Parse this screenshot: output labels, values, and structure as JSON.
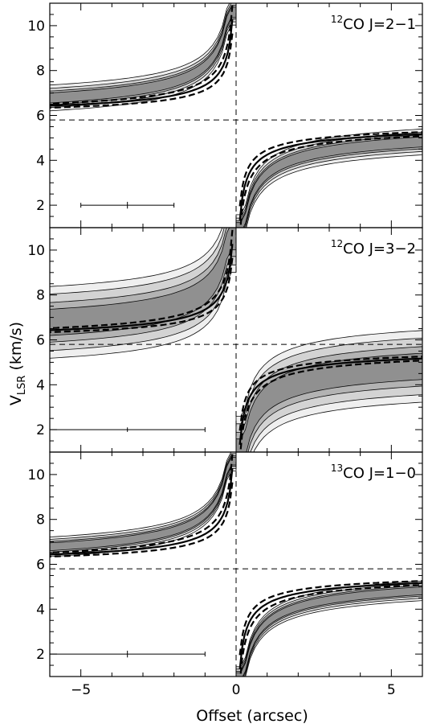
{
  "chart_data": {
    "type": "contour",
    "xlabel": "Offset (arcsec)",
    "ylabel": "V",
    "ylabel_sub": "LSR",
    "ylabel_unit": " (km/s)",
    "xlim": [
      -6,
      6
    ],
    "ylim": [
      1,
      11
    ],
    "x_ticks": [
      -5,
      0,
      5
    ],
    "x_tick_labels": [
      "−5",
      "0",
      "5"
    ],
    "y_ticks": [
      2,
      4,
      6,
      8,
      10
    ],
    "y_tick_labels": [
      "2",
      "4",
      "6",
      "8",
      "10"
    ],
    "systemic_velocity": 5.8,
    "center_offset": 0,
    "fill_colors": [
      "#efefef",
      "#d2d2d2",
      "#b2b2b2",
      "#8f8f8f"
    ],
    "panels": [
      {
        "label_sup": "12",
        "label_text": "CO J=2−1",
        "spread": 0.45,
        "extent": [
          0.62,
          0.4,
          0.22,
          0.1
        ],
        "error_bar": {
          "x": -3.5,
          "y": 2.0,
          "half_width": 1.5,
          "half_height": 0.15
        }
      },
      {
        "label_sup": "12",
        "label_text": "CO J=3−2",
        "spread": 0.9,
        "extent": [
          0.95,
          0.7,
          0.42,
          0.2
        ],
        "error_bar": {
          "x": -3.5,
          "y": 2.0,
          "half_width": 2.5,
          "half_height": 0.1
        }
      },
      {
        "label_sup": "13",
        "label_text": "CO J=1−0",
        "spread": 0.35,
        "extent": [
          0.6,
          0.4,
          0.22,
          0.1
        ],
        "error_bar": {
          "x": -3.5,
          "y": 2.0,
          "half_width": 2.5,
          "half_height": 0.15
        }
      }
    ]
  }
}
